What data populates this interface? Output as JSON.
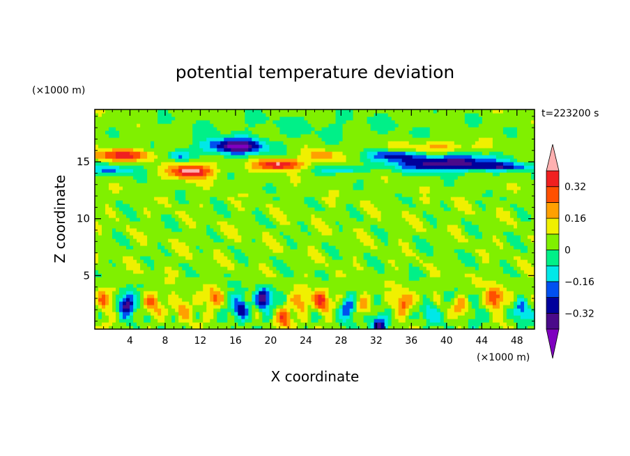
{
  "chart_data": {
    "type": "heatmap",
    "title": "potential temperature deviation",
    "xlabel": "X coordinate",
    "ylabel": "Z coordinate",
    "x_unit": "(×1000 m)",
    "y_unit": "(×1000 m)",
    "time_label": "t=223200 s",
    "xlim": [
      0,
      50
    ],
    "ylim": [
      0.3,
      19.6
    ],
    "x_ticks": [
      4,
      8,
      12,
      16,
      20,
      24,
      28,
      32,
      36,
      40,
      44,
      48
    ],
    "y_ticks": [
      5,
      10,
      15
    ],
    "colorbar": {
      "levels": [
        -0.48,
        -0.4,
        -0.32,
        -0.24,
        -0.16,
        -0.08,
        0,
        0.08,
        0.16,
        0.24,
        0.32,
        0.4,
        0.48
      ],
      "tick_values": [
        -0.32,
        -0.16,
        0,
        0.16,
        0.32
      ],
      "tick_labels": [
        "−0.32",
        "−0.16",
        "0",
        "0.16",
        "0.32"
      ],
      "colors": [
        "#7f00bf",
        "#4a0a8a",
        "#00009c",
        "#0050f0",
        "#00e8e8",
        "#00f088",
        "#80f000",
        "#f0f000",
        "#ffa000",
        "#ff5000",
        "#f02020",
        "#ffb0b0"
      ]
    }
  }
}
